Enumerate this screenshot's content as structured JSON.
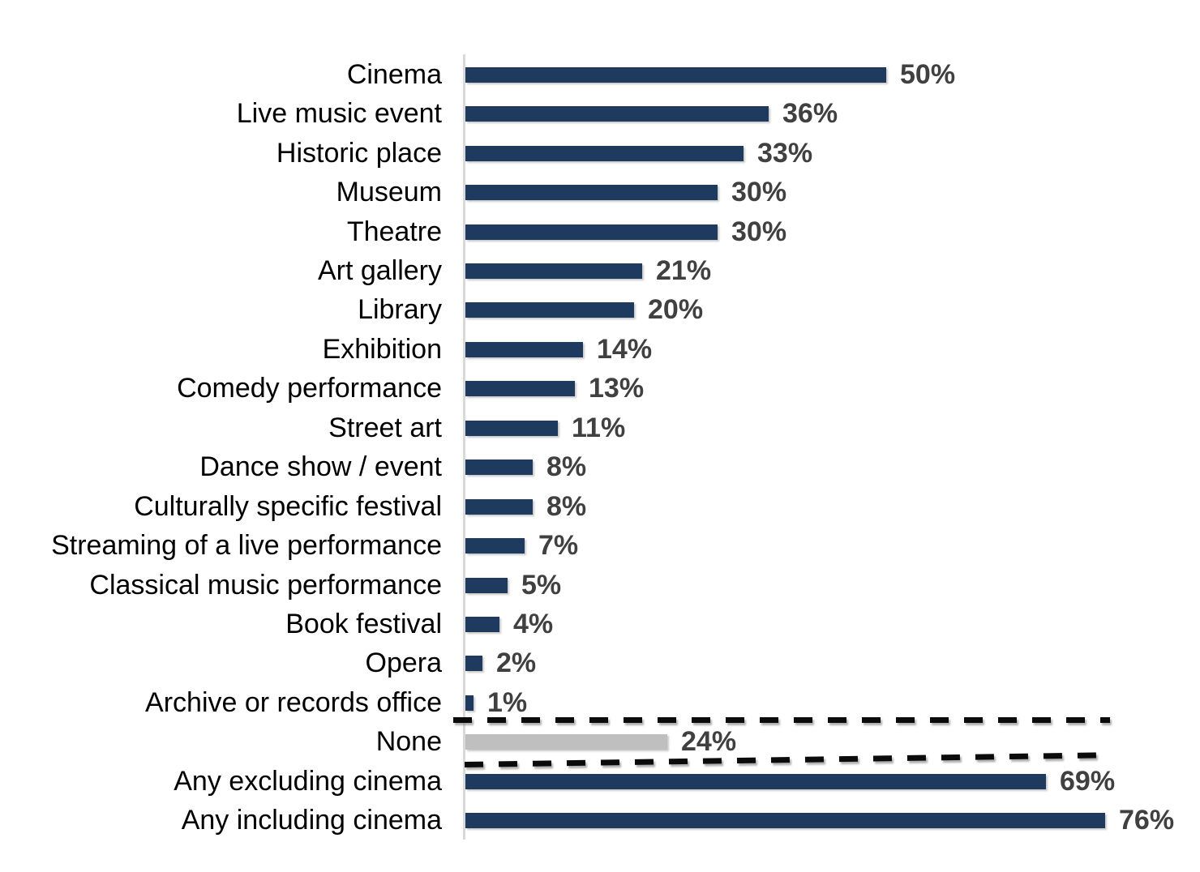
{
  "chart_data": {
    "type": "bar",
    "orientation": "horizontal",
    "title": "",
    "xlabel": "",
    "ylabel": "",
    "grid": false,
    "legend": false,
    "xlim": [
      0,
      87
    ],
    "categories": [
      "Cinema",
      "Live music event",
      "Historic place",
      "Museum",
      "Theatre",
      "Art gallery",
      "Library",
      "Exhibition",
      "Comedy performance",
      "Street art",
      "Dance show / event",
      "Culturally specific festival",
      "Streaming of a live performance",
      "Classical music performance",
      "Book festival",
      "Opera",
      "Archive or records office",
      "None",
      "Any excluding cinema",
      "Any including cinema"
    ],
    "values": [
      50,
      36,
      33,
      30,
      30,
      21,
      20,
      14,
      13,
      11,
      8,
      8,
      7,
      5,
      4,
      2,
      1,
      24,
      69,
      76
    ],
    "value_labels": [
      "50%",
      "36%",
      "33%",
      "30%",
      "30%",
      "21%",
      "20%",
      "14%",
      "13%",
      "11%",
      "8%",
      "8%",
      "7%",
      "5%",
      "4%",
      "2%",
      "1%",
      "24%",
      "69%",
      "76%"
    ],
    "highlight_category": "None",
    "annotations": [
      {
        "type": "dashed-separator",
        "position": "above None row"
      },
      {
        "type": "dashed-separator",
        "position": "below None row"
      }
    ],
    "colors": {
      "bar": "#1e3a5f",
      "highlight_bar": "#bfbfbf",
      "category_label": "#000000",
      "value_label": "#404040",
      "axis_line": "#d9d9d9",
      "dashed_line": "#0b0b0b",
      "background": "#ffffff"
    }
  }
}
